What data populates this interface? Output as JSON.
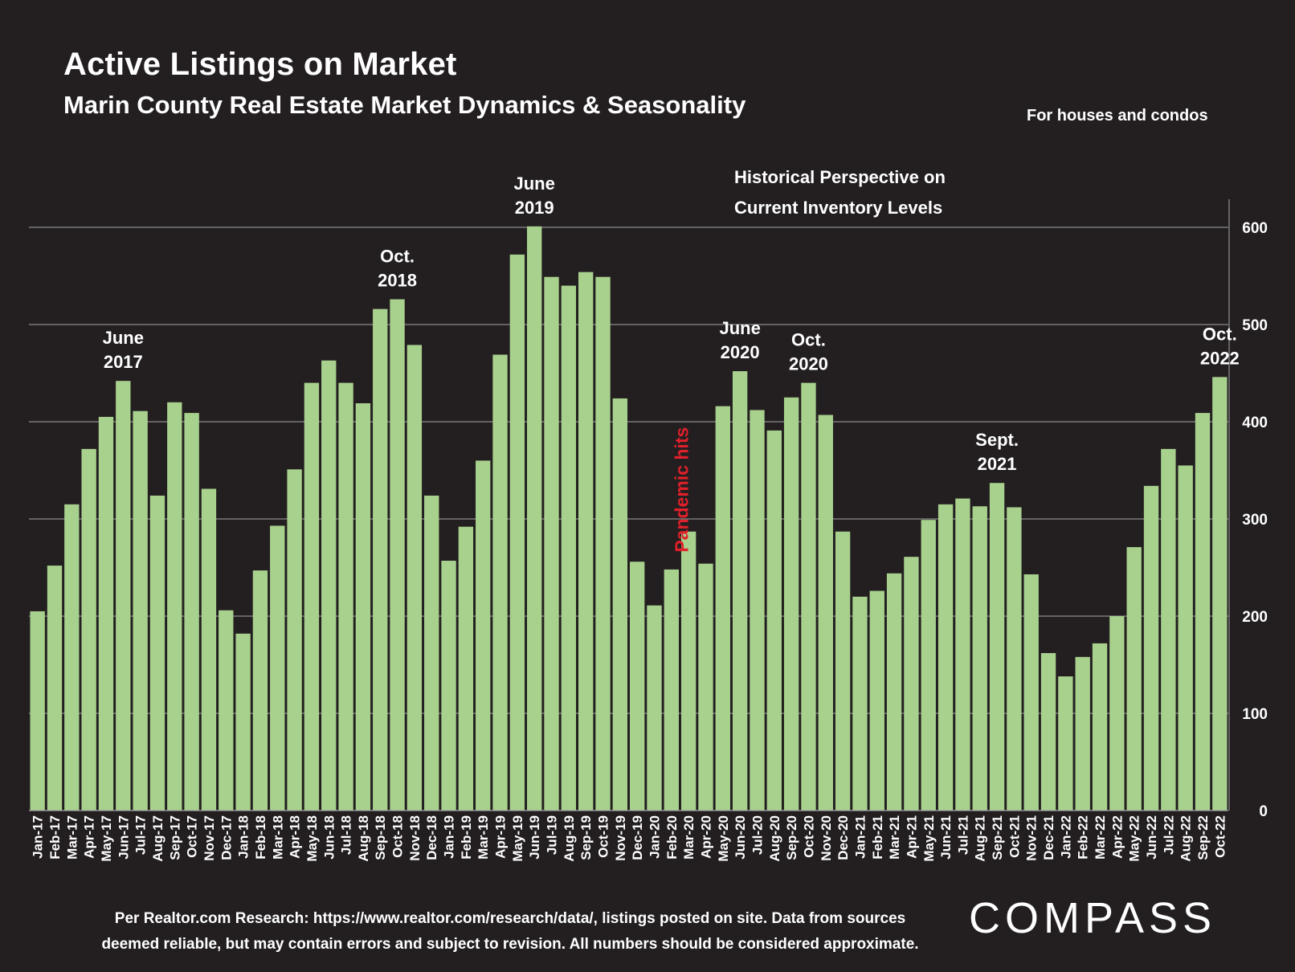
{
  "header": {
    "title": "Active Listings on Market",
    "subtitle": "Marin County Real Estate Market Dynamics & Seasonality",
    "note": "For houses and condos"
  },
  "footer": {
    "source_line1": "Per Realtor.com Research:  https://www.realtor.com/research/data/, listings posted on site. Data from sources",
    "source_line2": "deemed reliable, but may contain errors and subject to revision. All numbers should be considered approximate.",
    "brand": "COMPASS"
  },
  "colors": {
    "background": "#231f20",
    "bar": "#a9d18e",
    "gridline": "#a6a6a6",
    "annotation_red": "#e0202a",
    "text": "#ffffff"
  },
  "chart_data": {
    "type": "bar",
    "title": "",
    "xlabel": "",
    "ylabel": "",
    "ylim": [
      0,
      600
    ],
    "yticks": [
      0,
      100,
      200,
      300,
      400,
      500,
      600
    ],
    "y_axis_side": "right",
    "grid": true,
    "categories": [
      "Jan-17",
      "Feb-17",
      "Mar-17",
      "Apr-17",
      "May-17",
      "Jun-17",
      "Jul-17",
      "Aug-17",
      "Sep-17",
      "Oct-17",
      "Nov-17",
      "Dec-17",
      "Jan-18",
      "Feb-18",
      "Mar-18",
      "Apr-18",
      "May-18",
      "Jun-18",
      "Jul-18",
      "Aug-18",
      "Sep-18",
      "Oct-18",
      "Nov-18",
      "Dec-18",
      "Jan-19",
      "Feb-19",
      "Mar-19",
      "Apr-19",
      "May-19",
      "Jun-19",
      "Jul-19",
      "Aug-19",
      "Sep-19",
      "Oct-19",
      "Nov-19",
      "Dec-19",
      "Jan-20",
      "Feb-20",
      "Mar-20",
      "Apr-20",
      "May-20",
      "Jun-20",
      "Jul-20",
      "Aug-20",
      "Sep-20",
      "Oct-20",
      "Nov-20",
      "Dec-20",
      "Jan-21",
      "Feb-21",
      "Mar-21",
      "Apr-21",
      "May-21",
      "Jun-21",
      "Jul-21",
      "Aug-21",
      "Sep-21",
      "Oct-21",
      "Nov-21",
      "Dec-21",
      "Jan-22",
      "Feb-22",
      "Mar-22",
      "Apr-22",
      "May-22",
      "Jun-22",
      "Jul-22",
      "Aug-22",
      "Sep-22",
      "Oct-22"
    ],
    "series": [
      {
        "values": [
          205,
          252,
          315,
          372,
          405,
          442,
          411,
          324,
          420,
          409,
          331,
          206,
          182,
          247,
          293,
          351,
          440,
          463,
          440,
          419,
          516,
          526,
          479,
          324,
          257,
          292,
          360,
          469,
          572,
          601,
          549,
          540,
          554,
          549,
          424,
          256,
          211,
          248,
          287,
          254,
          416,
          452,
          412,
          391,
          425,
          440,
          407,
          287,
          220,
          226,
          244,
          261,
          299,
          315,
          321,
          313,
          337,
          312,
          243,
          162,
          138,
          158,
          172,
          200,
          271,
          334,
          372,
          355,
          409,
          446
        ]
      }
    ],
    "annotations": [
      {
        "text": [
          "June",
          "2017"
        ],
        "category": "Jun-17",
        "color": "#ffffff"
      },
      {
        "text": [
          "Oct.",
          "2018"
        ],
        "category": "Oct-18",
        "color": "#ffffff"
      },
      {
        "text": [
          "June",
          "2019"
        ],
        "category": "Jun-19",
        "color": "#ffffff"
      },
      {
        "text": [
          "June",
          "2020"
        ],
        "category": "Jun-20",
        "color": "#ffffff"
      },
      {
        "text": [
          "Oct.",
          "2020"
        ],
        "category": "Oct-20",
        "color": "#ffffff"
      },
      {
        "text": [
          "Sept.",
          "2021"
        ],
        "category": "Sep-21",
        "color": "#ffffff"
      },
      {
        "text": [
          "Oct.",
          "2022"
        ],
        "category": "Oct-22",
        "color": "#ffffff"
      },
      {
        "text": [
          "Pandemic hits"
        ],
        "category": "Apr-20",
        "color": "#e0202a",
        "rotated": true
      }
    ],
    "callout": [
      "Historical Perspective on",
      "Current Inventory Levels"
    ]
  }
}
